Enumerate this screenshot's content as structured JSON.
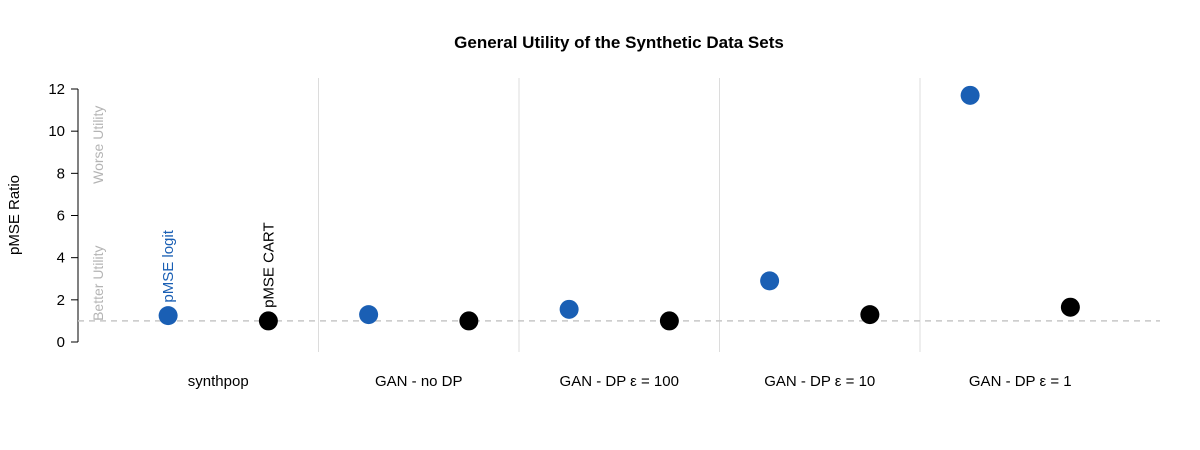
{
  "chart_data": {
    "type": "scatter",
    "title": "General Utility of the Synthetic Data Sets",
    "ylabel": "pMSE Ratio",
    "xlabel": "",
    "ylim": [
      0,
      12
    ],
    "yticks": [
      0,
      2,
      4,
      6,
      8,
      10,
      12
    ],
    "categories": [
      "synthpop",
      "GAN - no DP",
      "GAN - DP ε = 100",
      "GAN - DP ε = 10",
      "GAN - DP ε = 1"
    ],
    "series": [
      {
        "name": "pMSE logit",
        "color": "#1a5fb4",
        "values": [
          1.25,
          1.3,
          1.55,
          2.9,
          11.7
        ]
      },
      {
        "name": "pMSE CART",
        "color": "#000000",
        "values": [
          1.0,
          1.0,
          1.0,
          1.3,
          1.65
        ]
      }
    ],
    "reference_line": {
      "y": 1,
      "style": "dashed",
      "color": "#c8c8c8"
    },
    "annotations": {
      "better": "Better Utility",
      "worse": "Worse Utility",
      "color": "#b4b4b4"
    },
    "grid": "vertical separators between categories"
  }
}
